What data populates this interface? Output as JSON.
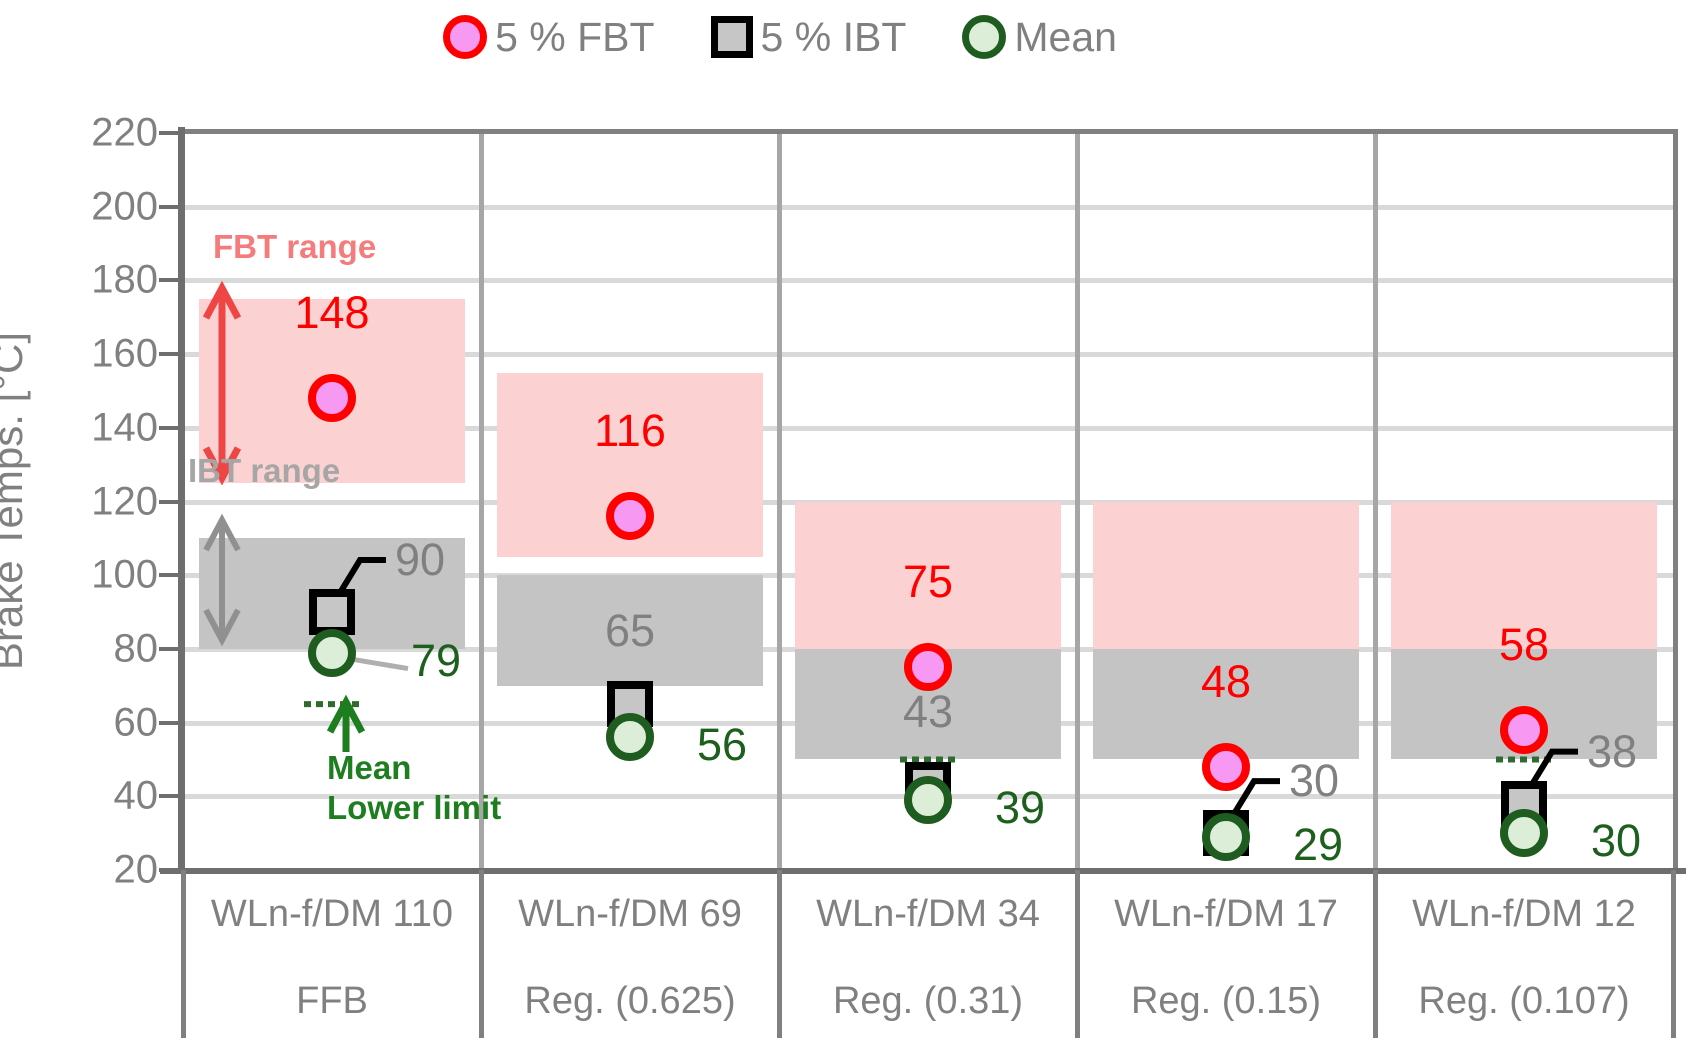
{
  "legend": {
    "items": [
      {
        "label": "5 % FBT",
        "marker": "fbt-circle"
      },
      {
        "label": "5 % IBT",
        "marker": "ibt-square"
      },
      {
        "label": "Mean",
        "marker": "mean-circle"
      }
    ]
  },
  "chart_data": {
    "type": "scatter",
    "title": "",
    "ylabel": "Brake Temps. [°C]",
    "xlabel": "",
    "ylim": [
      20,
      220
    ],
    "yticks": [
      220,
      200,
      180,
      160,
      140,
      120,
      100,
      80,
      60,
      40,
      20
    ],
    "grid": "horizontal",
    "legend_position": "top-center",
    "categories_line1": [
      "WLn-f/DM 110",
      "WLn-f/DM 69",
      "WLn-f/DM 34",
      "WLn-f/DM 17",
      "WLn-f/DM 12"
    ],
    "categories_line2": [
      "FFB",
      "Reg. (0.625)",
      "Reg. (0.31)",
      "Reg. (0.15)",
      "Reg. (0.107)"
    ],
    "series": [
      {
        "name": "5 % FBT",
        "values": [
          148,
          116,
          75,
          48,
          58
        ]
      },
      {
        "name": "5 % IBT",
        "values": [
          90,
          65,
          43,
          30,
          38
        ]
      },
      {
        "name": "Mean",
        "values": [
          79,
          56,
          39,
          29,
          30
        ]
      }
    ],
    "fbt_ranges": [
      [
        125,
        175
      ],
      [
        105,
        155
      ],
      [
        80,
        120
      ],
      [
        80,
        120
      ],
      [
        80,
        120
      ]
    ],
    "ibt_ranges": [
      [
        80,
        110
      ],
      [
        70,
        100
      ],
      [
        50,
        80
      ],
      [
        50,
        80
      ],
      [
        50,
        80
      ]
    ],
    "mean_lower_limit_marks": [
      65,
      null,
      50,
      null,
      50
    ]
  },
  "annotations": {
    "fbt_range_label": "FBT range",
    "ibt_range_label": "IBT range",
    "mean_lower_limit_line1": "Mean",
    "mean_lower_limit_line2": "Lower limit"
  },
  "colors": {
    "fbt_fill": "#F799F3",
    "fbt_stroke": "#FF0000",
    "ibt_fill": "#C6C6C6",
    "ibt_stroke": "#000000",
    "mean_fill": "#DCEDD8",
    "mean_stroke": "#1F5C1F",
    "fbt_band": "#FBD2D1",
    "ibt_band": "#C4C4C4",
    "fbt_value_label": "#FF0000",
    "ibt_value_label": "#808080",
    "mean_value_label": "#1D5F1D",
    "fbt_range_label": "#F47C7C",
    "fbt_range_arrow": "#EE4545",
    "ibt_range_label": "#A6A6A6",
    "ibt_range_arrow": "#909090",
    "mean_annotation": "#1E7D1E",
    "mean_limit_dash": "#2F6B2F",
    "axis_text": "#808080",
    "grid": "#D9D9D9",
    "divider": "#A6A6A6",
    "axis_line": "#6E6E6E",
    "border": "#808080",
    "leader_black": "#000000",
    "leader_gray": "#AFAFAF"
  }
}
